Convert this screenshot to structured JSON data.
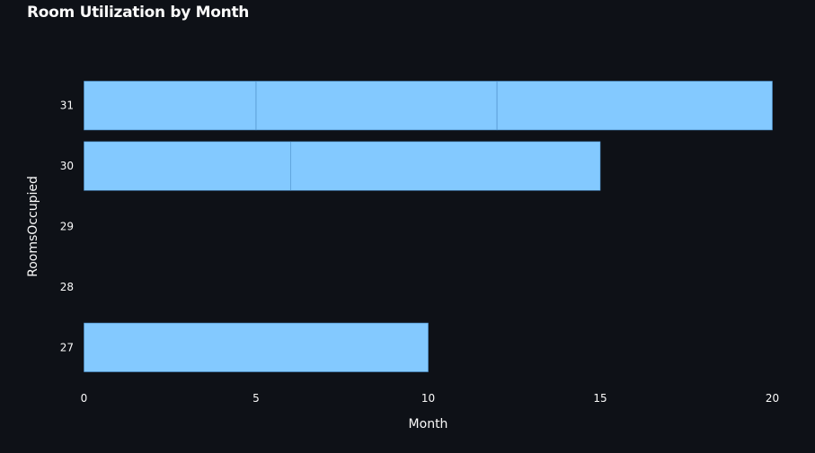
{
  "chart_data": {
    "type": "bar",
    "orientation": "horizontal",
    "stacked": true,
    "title": "Room Utilization by Month",
    "xlabel": "Month",
    "ylabel": "RoomsOccupied",
    "xlim": [
      0,
      20
    ],
    "x_ticks": [
      0,
      5,
      10,
      15,
      20
    ],
    "categories": [
      27,
      28,
      29,
      30,
      31
    ],
    "segments": [
      {
        "category": 31,
        "value": 5
      },
      {
        "category": 31,
        "value": 7
      },
      {
        "category": 31,
        "value": 8
      },
      {
        "category": 30,
        "value": 6
      },
      {
        "category": 30,
        "value": 9
      },
      {
        "category": 27,
        "value": 10
      }
    ],
    "bar_color": "#83c9ff",
    "segment_border_color": "#4e8fc8",
    "background_color": "#0e1117",
    "text_color": "#fafafa",
    "grid": false,
    "legend": "none"
  }
}
